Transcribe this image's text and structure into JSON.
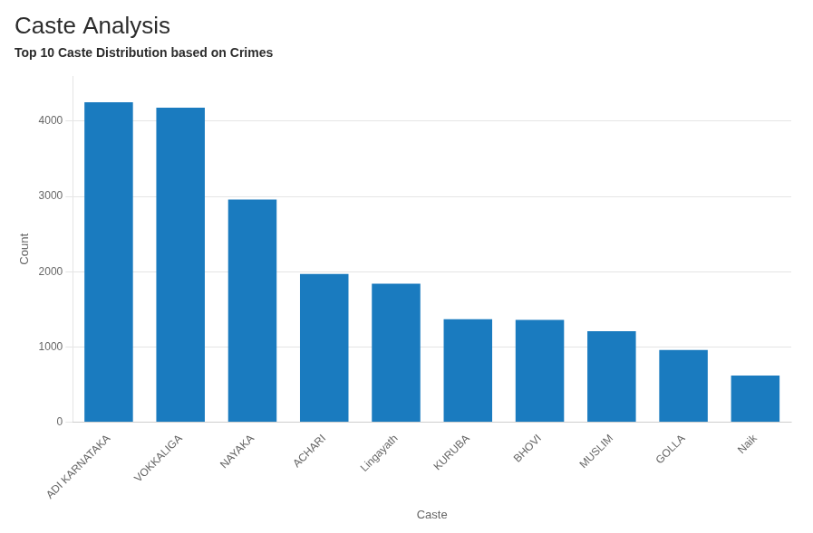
{
  "chart_data": {
    "type": "bar",
    "title": "Caste Analysis",
    "subtitle": "Top 10 Caste Distribution based on Crimes",
    "categories": [
      "ADI KARNATAKA",
      "VOKKALIGA",
      "NAYAKA",
      "ACHARI",
      "Lingayath",
      "KURUBA",
      "BHOVI",
      "MUSLIM",
      "GOLLA",
      "Naik"
    ],
    "values": [
      4250,
      4180,
      2960,
      1970,
      1840,
      1370,
      1360,
      1210,
      960,
      620
    ],
    "color": "#1a7bbf",
    "xlabel": "Caste",
    "ylabel": "Count",
    "ylim": [
      0,
      4600
    ],
    "yticks": [
      0,
      1000,
      2000,
      3000,
      4000
    ],
    "grid": true
  }
}
